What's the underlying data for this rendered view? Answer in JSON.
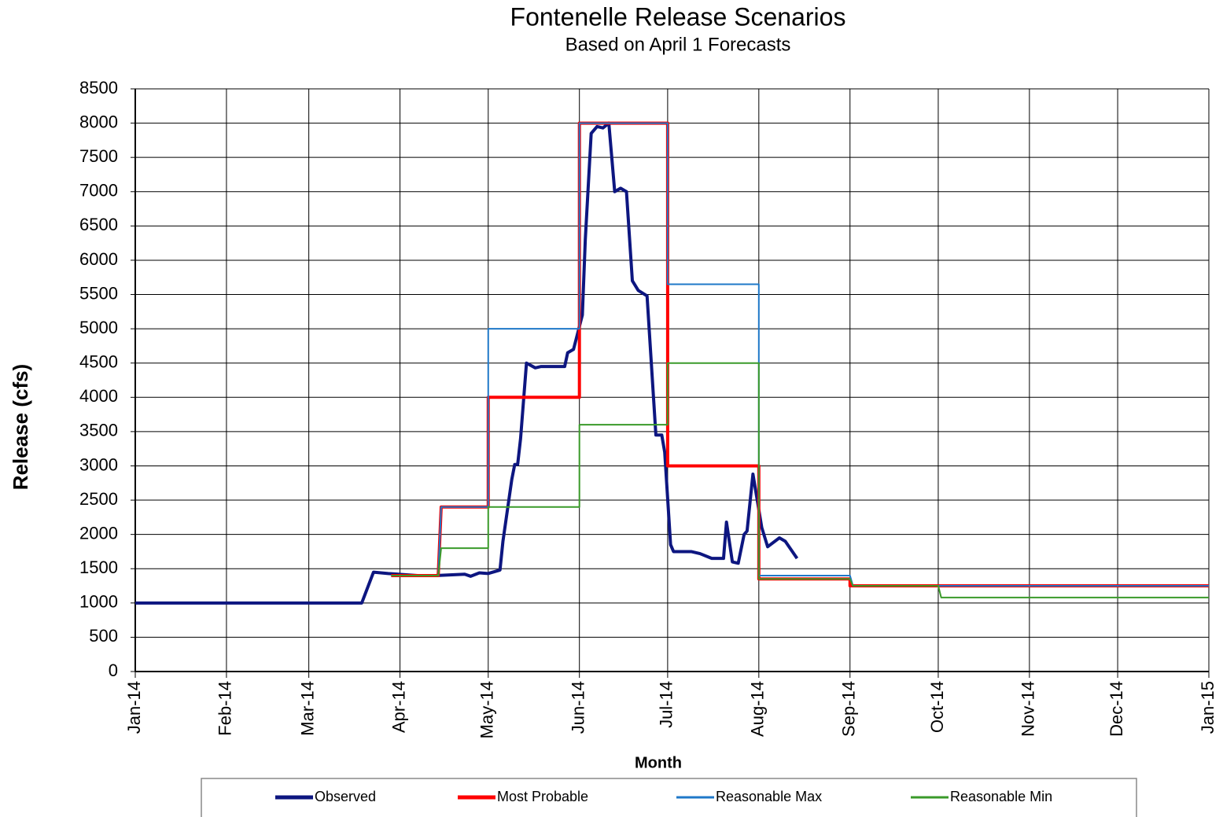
{
  "chart_data": {
    "type": "line",
    "title": "Fontenelle Release Scenarios",
    "subtitle": "Based on April 1 Forecasts",
    "xlabel": "Month",
    "ylabel": "Release (cfs)",
    "xlim": [
      0,
      365
    ],
    "xticks": [
      {
        "value": 0,
        "label": "Jan-14"
      },
      {
        "value": 31,
        "label": "Feb-14"
      },
      {
        "value": 59,
        "label": "Mar-14"
      },
      {
        "value": 90,
        "label": "Apr-14"
      },
      {
        "value": 120,
        "label": "May-14"
      },
      {
        "value": 151,
        "label": "Jun-14"
      },
      {
        "value": 181,
        "label": "Jul-14"
      },
      {
        "value": 212,
        "label": "Aug-14"
      },
      {
        "value": 243,
        "label": "Sep-14"
      },
      {
        "value": 273,
        "label": "Oct-14"
      },
      {
        "value": 304,
        "label": "Nov-14"
      },
      {
        "value": 334,
        "label": "Dec-14"
      },
      {
        "value": 365,
        "label": "Jan-15"
      }
    ],
    "ylim": [
      0,
      8500
    ],
    "yticks": [
      0,
      500,
      1000,
      1500,
      2000,
      2500,
      3000,
      3500,
      4000,
      4500,
      5000,
      5500,
      6000,
      6500,
      7000,
      7500,
      8000,
      8500
    ],
    "grid": true,
    "legend": "bottom",
    "series": [
      {
        "name": "Observed",
        "color": "#0d1680",
        "width": 4,
        "x": [
          0,
          77,
          81,
          86,
          96,
          102,
          112,
          114,
          117,
          120,
          124,
          125,
          128,
          129,
          130,
          131,
          133,
          136,
          138,
          146,
          147,
          149,
          152,
          153,
          155,
          157,
          159,
          161,
          163,
          165,
          167,
          169,
          171,
          174,
          177,
          179,
          180,
          182,
          183,
          189,
          192,
          196,
          200,
          201,
          203,
          205,
          207,
          208,
          210,
          213,
          215,
          219,
          221,
          225
        ],
        "values": [
          1000,
          1000,
          1450,
          1430,
          1400,
          1400,
          1420,
          1390,
          1440,
          1430,
          1480,
          1900,
          2800,
          3020,
          3020,
          3400,
          4500,
          4430,
          4450,
          4450,
          4650,
          4700,
          5200,
          6300,
          7850,
          7950,
          7930,
          8000,
          7000,
          7050,
          7000,
          5700,
          5560,
          5480,
          3450,
          3450,
          3200,
          1850,
          1750,
          1750,
          1720,
          1650,
          1650,
          2180,
          1600,
          1580,
          2000,
          2050,
          2880,
          2100,
          1820,
          1950,
          1900,
          1650
        ]
      },
      {
        "name": "Most Probable",
        "color": "#ff0000",
        "width": 4,
        "x": [
          87,
          103,
          104,
          120,
          120,
          151,
          151,
          181,
          181,
          212,
          212,
          243,
          243,
          365
        ],
        "values": [
          1400,
          1400,
          2400,
          2400,
          4000,
          4000,
          8000,
          8000,
          3000,
          3000,
          1350,
          1350,
          1250,
          1250
        ]
      },
      {
        "name": "Reasonable Max",
        "color": "#1f78c8",
        "width": 2,
        "x": [
          87,
          103,
          104,
          120,
          120,
          151,
          151,
          181,
          181,
          212,
          212,
          243,
          244,
          365
        ],
        "values": [
          1400,
          1400,
          2400,
          2400,
          5000,
          5000,
          8000,
          8000,
          5650,
          5650,
          1400,
          1400,
          1250,
          1250
        ]
      },
      {
        "name": "Reasonable Min",
        "color": "#3a9a2a",
        "width": 2,
        "x": [
          87,
          103,
          104,
          120,
          120,
          151,
          151,
          181,
          181,
          212,
          212,
          243,
          244,
          273,
          274,
          365
        ],
        "values": [
          1400,
          1400,
          1800,
          1800,
          2400,
          2400,
          3600,
          3600,
          4500,
          4500,
          1350,
          1350,
          1250,
          1250,
          1080,
          1080
        ]
      }
    ]
  }
}
